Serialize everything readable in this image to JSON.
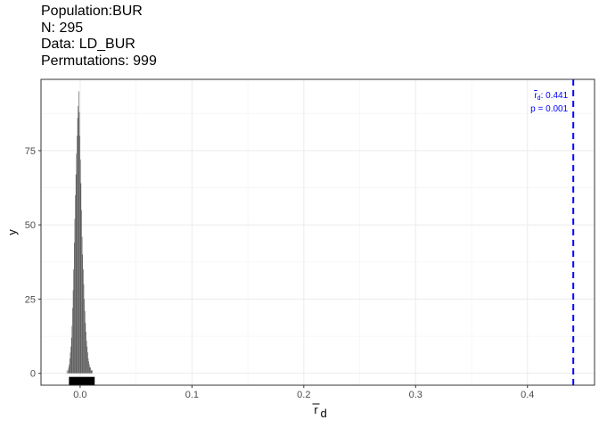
{
  "header": {
    "title_lines": [
      "Population:BUR",
      "N: 295",
      "Data: LD_BUR",
      "Permutations: 999"
    ]
  },
  "chart_data": {
    "type": "histogram",
    "xlabel_base": "r",
    "xlabel_sub": "d",
    "ylabel": "y",
    "xlim": [
      -0.035,
      0.46
    ],
    "ylim": [
      -4,
      99
    ],
    "xticks": [
      0.0,
      0.1,
      0.2,
      0.3,
      0.4
    ],
    "xtick_labels": [
      "0.0",
      "0.1",
      "0.2",
      "0.3",
      "0.4"
    ],
    "yticks": [
      0,
      25,
      50,
      75
    ],
    "ytick_labels": [
      "0",
      "25",
      "50",
      "75"
    ],
    "grid": true,
    "bar_color": "#595959",
    "bin_width": 0.0005,
    "bins_start": -0.012,
    "counts": [
      1,
      0,
      1,
      2,
      3,
      5,
      7,
      9,
      12,
      16,
      22,
      28,
      35,
      44,
      52,
      60,
      67,
      74,
      80,
      86,
      90,
      95,
      88,
      80,
      72,
      64,
      55,
      46,
      40,
      35,
      30,
      25,
      21,
      17,
      14,
      11,
      9,
      7,
      5,
      4,
      3,
      2,
      2,
      1,
      1,
      1
    ],
    "observed": {
      "value": 0.441,
      "color": "#0000ff",
      "line_style": "dashed",
      "label_stat": ": 0.441",
      "label_p": "p = 0.001"
    },
    "summary_bar": {
      "x_start": -0.01,
      "x_end": 0.013,
      "color": "#000000"
    }
  }
}
